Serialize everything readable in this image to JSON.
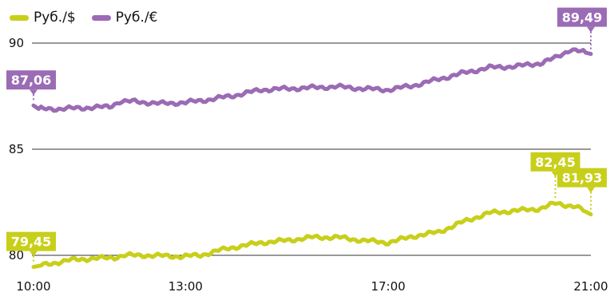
{
  "colors": {
    "usd": "#c8cf1a",
    "eur": "#9b6bb5",
    "grid": "#333333"
  },
  "legend": [
    {
      "label": "Руб./$",
      "color": "#c8cf1a"
    },
    {
      "label": "Руб./€",
      "color": "#9b6bb5"
    }
  ],
  "chart_data": {
    "type": "line",
    "x_range": [
      10,
      21
    ],
    "y_range": [
      79.6,
      91.2
    ],
    "x_ticks": [
      {
        "value": 10,
        "label": "10:00"
      },
      {
        "value": 13,
        "label": "13:00"
      },
      {
        "value": 17,
        "label": "17:00"
      },
      {
        "value": 21,
        "label": "21:00"
      }
    ],
    "y_ticks": [
      {
        "value": 80,
        "label": "80"
      },
      {
        "value": 85,
        "label": "85"
      },
      {
        "value": 90,
        "label": "90"
      }
    ],
    "grid": "horizontal",
    "series": [
      {
        "name": "Руб./$",
        "color": "#c8cf1a",
        "x": [
          10.0,
          10.3,
          10.8,
          11.6,
          11.8,
          12.2,
          12.9,
          13.3,
          13.6,
          14.0,
          14.5,
          15.0,
          15.5,
          16.0,
          16.5,
          17.0,
          17.5,
          18.0,
          18.5,
          19.0,
          19.5,
          20.0,
          20.3,
          20.7,
          21.0
        ],
        "y": [
          79.45,
          79.6,
          79.8,
          79.9,
          80.0,
          80.0,
          79.95,
          80.0,
          80.2,
          80.4,
          80.6,
          80.7,
          80.85,
          80.85,
          80.7,
          80.6,
          80.9,
          81.1,
          81.6,
          82.0,
          82.1,
          82.2,
          82.45,
          82.3,
          81.93
        ]
      },
      {
        "name": "Руб./€",
        "color": "#9b6bb5",
        "x": [
          10.0,
          10.1,
          10.5,
          11.0,
          11.5,
          11.7,
          12.0,
          12.5,
          13.0,
          13.5,
          14.0,
          14.5,
          15.0,
          15.5,
          16.0,
          16.5,
          17.0,
          17.5,
          18.0,
          18.5,
          19.0,
          19.5,
          20.0,
          20.3,
          20.6,
          20.8,
          21.0
        ],
        "y": [
          87.06,
          86.9,
          86.9,
          86.95,
          87.0,
          87.25,
          87.25,
          87.15,
          87.2,
          87.35,
          87.55,
          87.8,
          87.85,
          87.9,
          87.95,
          87.85,
          87.8,
          88.0,
          88.3,
          88.6,
          88.85,
          88.9,
          89.05,
          89.3,
          89.7,
          89.6,
          89.49
        ]
      }
    ],
    "annotations": [
      {
        "series": 1,
        "x": 10.0,
        "y": 87.06,
        "label": "87,06"
      },
      {
        "series": 1,
        "x": 21.0,
        "y": 89.49,
        "label": "89,49"
      },
      {
        "series": 0,
        "x": 10.0,
        "y": 79.45,
        "label": "79,45"
      },
      {
        "series": 0,
        "x": 20.3,
        "y": 82.45,
        "label": "82,45"
      },
      {
        "series": 0,
        "x": 21.0,
        "y": 81.93,
        "label": "81,93"
      }
    ]
  }
}
